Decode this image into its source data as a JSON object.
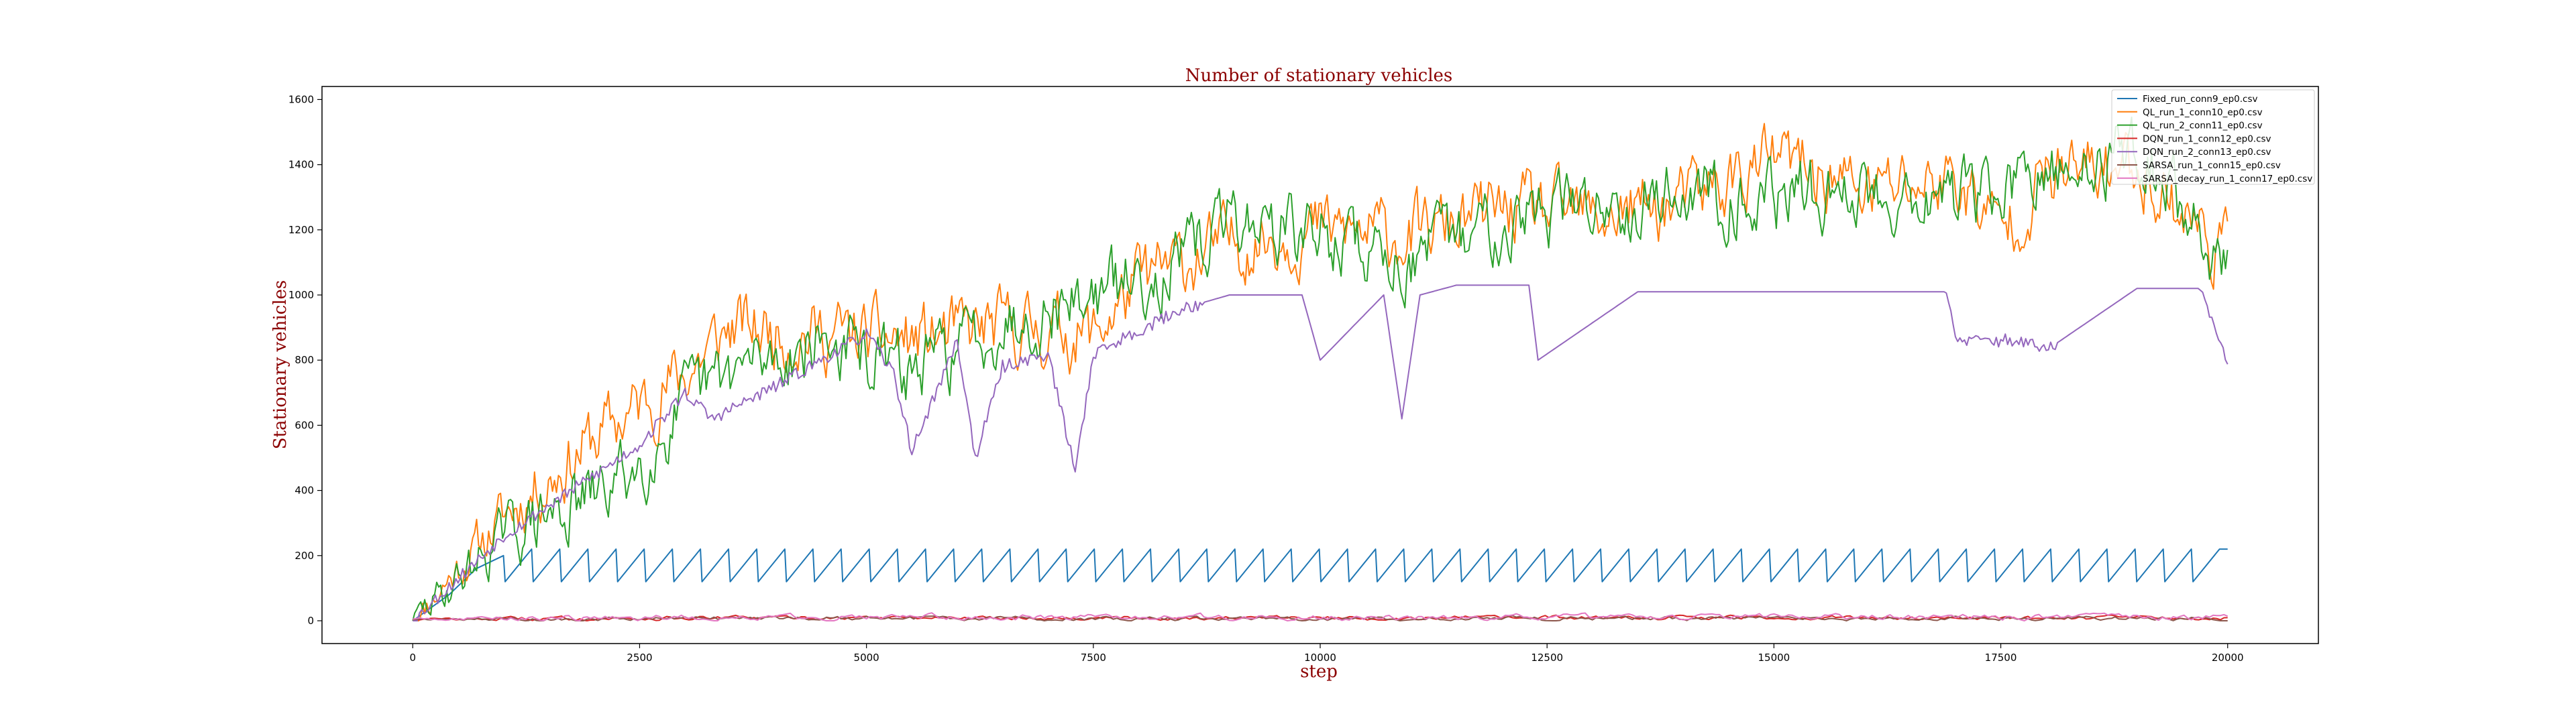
{
  "chart_data": {
    "type": "line",
    "title": "Number of stationary vehicles",
    "xlabel": "step",
    "ylabel": "Stationary vehicles",
    "xlim": [
      -1000,
      21000
    ],
    "ylim": [
      -70,
      1640
    ],
    "xticks": [
      0,
      2500,
      5000,
      7500,
      10000,
      12500,
      15000,
      17500,
      20000
    ],
    "yticks": [
      0,
      200,
      400,
      600,
      800,
      1000,
      1200,
      1400,
      1600
    ],
    "grid": false,
    "legend_position": "top-right",
    "series": [
      {
        "name": "Fixed_run_conn9_ep0.csv",
        "color": "#1f77b4",
        "x": [
          0,
          400,
          1000,
          1300,
          1600,
          20000
        ],
        "y": [
          0,
          80,
          200,
          120,
          220,
          220
        ],
        "pattern": "sawtooth 120-220, period ~310"
      },
      {
        "name": "QL_run_1_conn10_ep0.csv",
        "color": "#ff7f0e",
        "x": [
          0,
          1000,
          2000,
          3000,
          3500,
          4500,
          5500,
          6500,
          7500,
          8000,
          9000,
          10000,
          11000,
          12000,
          13000,
          14000,
          15000,
          16000,
          17000,
          17500,
          18000,
          19000,
          20000
        ],
        "y": [
          0,
          320,
          560,
          760,
          900,
          880,
          860,
          900,
          880,
          1040,
          1160,
          1200,
          1180,
          1260,
          1240,
          1280,
          1420,
          1320,
          1360,
          1200,
          1360,
          1400,
          1120
        ]
      },
      {
        "name": "QL_run_2_conn11_ep0.csv",
        "color": "#2ca02c",
        "x": [
          0,
          1000,
          2000,
          2500,
          3000,
          3500,
          4500,
          5500,
          6500,
          7500,
          8500,
          9000,
          10000,
          11000,
          12000,
          13000,
          14000,
          15000,
          16000,
          17000,
          18000,
          19000,
          20000
        ],
        "y": [
          0,
          260,
          380,
          480,
          660,
          760,
          860,
          760,
          920,
          1000,
          1100,
          1240,
          1180,
          1100,
          1240,
          1280,
          1320,
          1300,
          1320,
          1300,
          1340,
          1460,
          1080
        ]
      },
      {
        "name": "DQN_run_1_conn12_ep0.csv",
        "color": "#d62728",
        "x": [
          0,
          5000,
          10000,
          15000,
          20000
        ],
        "y": [
          5,
          10,
          8,
          10,
          8
        ]
      },
      {
        "name": "DQN_run_2_conn13_ep0.csv",
        "color": "#9467bd",
        "x": [
          0,
          1000,
          2500,
          3000,
          3300,
          4000,
          5000,
          5300,
          5500,
          6000,
          6200,
          6500,
          7000,
          7300,
          7500,
          8500,
          9000,
          9800,
          10000,
          10700,
          10900,
          11100,
          11500,
          12300,
          12400,
          13500,
          14000,
          15000,
          16000,
          16900,
          17000,
          17700,
          18000,
          19000,
          19700,
          20000
        ],
        "y": [
          0,
          260,
          540,
          700,
          620,
          720,
          880,
          760,
          520,
          860,
          500,
          780,
          820,
          460,
          820,
          960,
          1000,
          1000,
          800,
          1000,
          620,
          1000,
          1030,
          1030,
          800,
          1010,
          1010,
          1010,
          1010,
          1010,
          860,
          860,
          830,
          1020,
          1020,
          780
        ]
      },
      {
        "name": "SARSA_run_1_conn15_ep0.csv",
        "color": "#8c564b",
        "x": [
          0,
          5000,
          10000,
          15000,
          20000
        ],
        "y": [
          4,
          8,
          6,
          8,
          6
        ]
      },
      {
        "name": "SARSA_decay_run_1_conn17_ep0.csv",
        "color": "#e377c2",
        "x": [
          0,
          5000,
          10000,
          15000,
          20000
        ],
        "y": [
          6,
          12,
          10,
          12,
          10
        ]
      }
    ]
  }
}
